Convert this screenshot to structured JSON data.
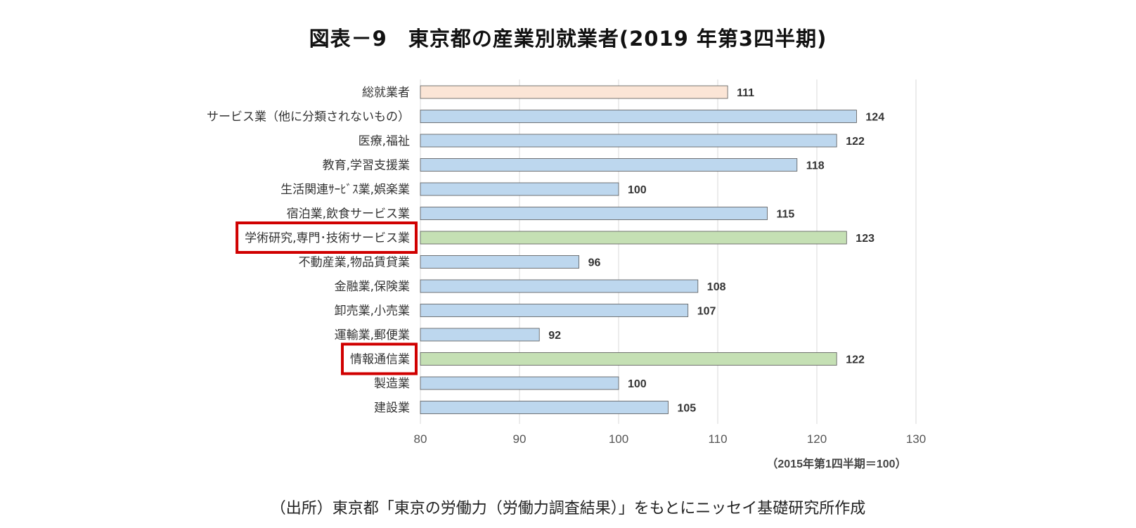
{
  "title": "図表－9　東京都の産業別就業者(2019 年第3四半期)",
  "source": "（出所）東京都「東京の労働力（労働力調査結果）」をもとにニッセイ基礎研究所作成",
  "colors": {
    "total": "#fbe5d6",
    "default": "#bdd7ee",
    "highlight": "#c5e0b4",
    "bar_border": "#555555",
    "grid": "#d9d9d9",
    "box": "#d00000"
  },
  "chart_data": {
    "type": "bar",
    "orientation": "horizontal",
    "title": "図表－9　東京都の産業別就業者(2019 年第3四半期)",
    "unit_note": "（2015年第1四半期＝100）",
    "xlim": [
      80,
      130
    ],
    "xticks": [
      "80",
      "90",
      "100",
      "110",
      "120",
      "130"
    ],
    "grid": true,
    "categories": [
      "総就業者",
      "サービス業（他に分類されないもの）",
      "医療,福祉",
      "教育,学習支援業",
      "生活関連ｻｰﾋﾞｽ業,娯楽業",
      "宿泊業,飲食サービス業",
      "学術研究,専門･技術サービス業",
      "不動産業,物品賃貸業",
      "金融業,保険業",
      "卸売業,小売業",
      "運輸業,郵便業",
      "情報通信業",
      "製造業",
      "建設業"
    ],
    "values": [
      111,
      124,
      122,
      118,
      100,
      115,
      123,
      96,
      108,
      107,
      92,
      122,
      100,
      105
    ],
    "value_labels": [
      "111",
      "124",
      "122",
      "118",
      "100",
      "115",
      "123",
      "96",
      "108",
      "107",
      "92",
      "122",
      "100",
      "105"
    ],
    "bar_types": [
      "total",
      "default",
      "default",
      "default",
      "default",
      "default",
      "highlight",
      "default",
      "default",
      "default",
      "default",
      "highlight",
      "default",
      "default"
    ],
    "highlighted_categories": [
      "学術研究,専門･技術サービス業",
      "情報通信業"
    ]
  }
}
